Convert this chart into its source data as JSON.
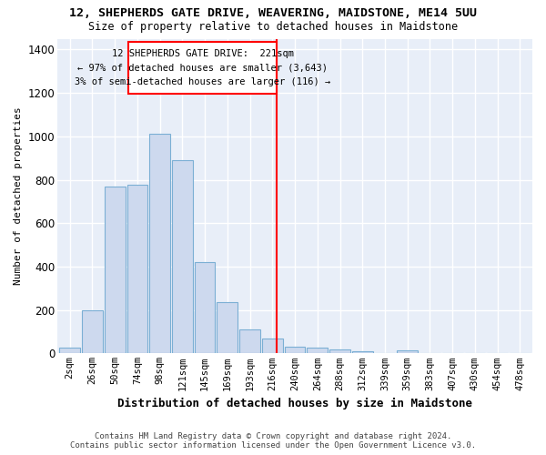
{
  "title": "12, SHEPHERDS GATE DRIVE, WEAVERING, MAIDSTONE, ME14 5UU",
  "subtitle": "Size of property relative to detached houses in Maidstone",
  "xlabel": "Distribution of detached houses by size in Maidstone",
  "ylabel": "Number of detached properties",
  "bar_color": "#cdd9ee",
  "bar_edge_color": "#7bafd4",
  "background_color": "#e8eef8",
  "categories": [
    "2sqm",
    "26sqm",
    "50sqm",
    "74sqm",
    "98sqm",
    "121sqm",
    "145sqm",
    "169sqm",
    "193sqm",
    "216sqm",
    "240sqm",
    "264sqm",
    "288sqm",
    "312sqm",
    "339sqm",
    "359sqm",
    "383sqm",
    "407sqm",
    "430sqm",
    "454sqm",
    "478sqm"
  ],
  "values": [
    25,
    200,
    770,
    775,
    1010,
    890,
    420,
    235,
    110,
    70,
    30,
    25,
    20,
    10,
    0,
    15,
    0,
    0,
    0,
    0,
    0
  ],
  "ylim": [
    0,
    1450
  ],
  "yticks": [
    0,
    200,
    400,
    600,
    800,
    1000,
    1200,
    1400
  ],
  "annotation_line1": "12 SHEPHERDS GATE DRIVE:  221sqm",
  "annotation_line2": "← 97% of detached houses are smaller (3,643)",
  "annotation_line3": "3% of semi-detached houses are larger (116) →",
  "vline_color": "red",
  "vline_x_index": 9.2,
  "footer_line1": "Contains HM Land Registry data © Crown copyright and database right 2024.",
  "footer_line2": "Contains public sector information licensed under the Open Government Licence v3.0."
}
